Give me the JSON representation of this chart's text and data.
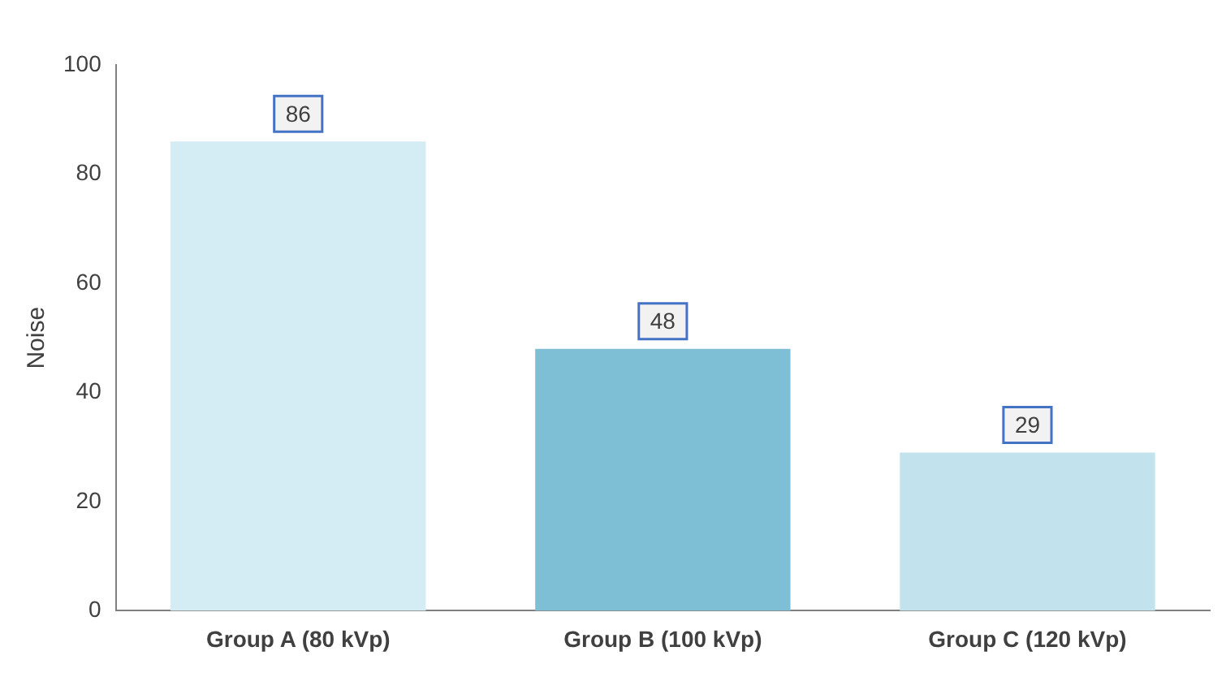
{
  "chart_data": {
    "type": "bar",
    "ylabel": "Noise",
    "categories": [
      "Group A (80 kVp)",
      "Group B (100 kVp)",
      "Group C (120 kVp)"
    ],
    "values": [
      86,
      48,
      29
    ],
    "colors": [
      "#d4ecf4",
      "#7fbfd6",
      "#c2e2ee"
    ],
    "ylim": [
      0,
      100
    ],
    "yticks": [
      0,
      20,
      40,
      60,
      80,
      100
    ],
    "grid": false,
    "legend": false,
    "data_labels": true
  }
}
